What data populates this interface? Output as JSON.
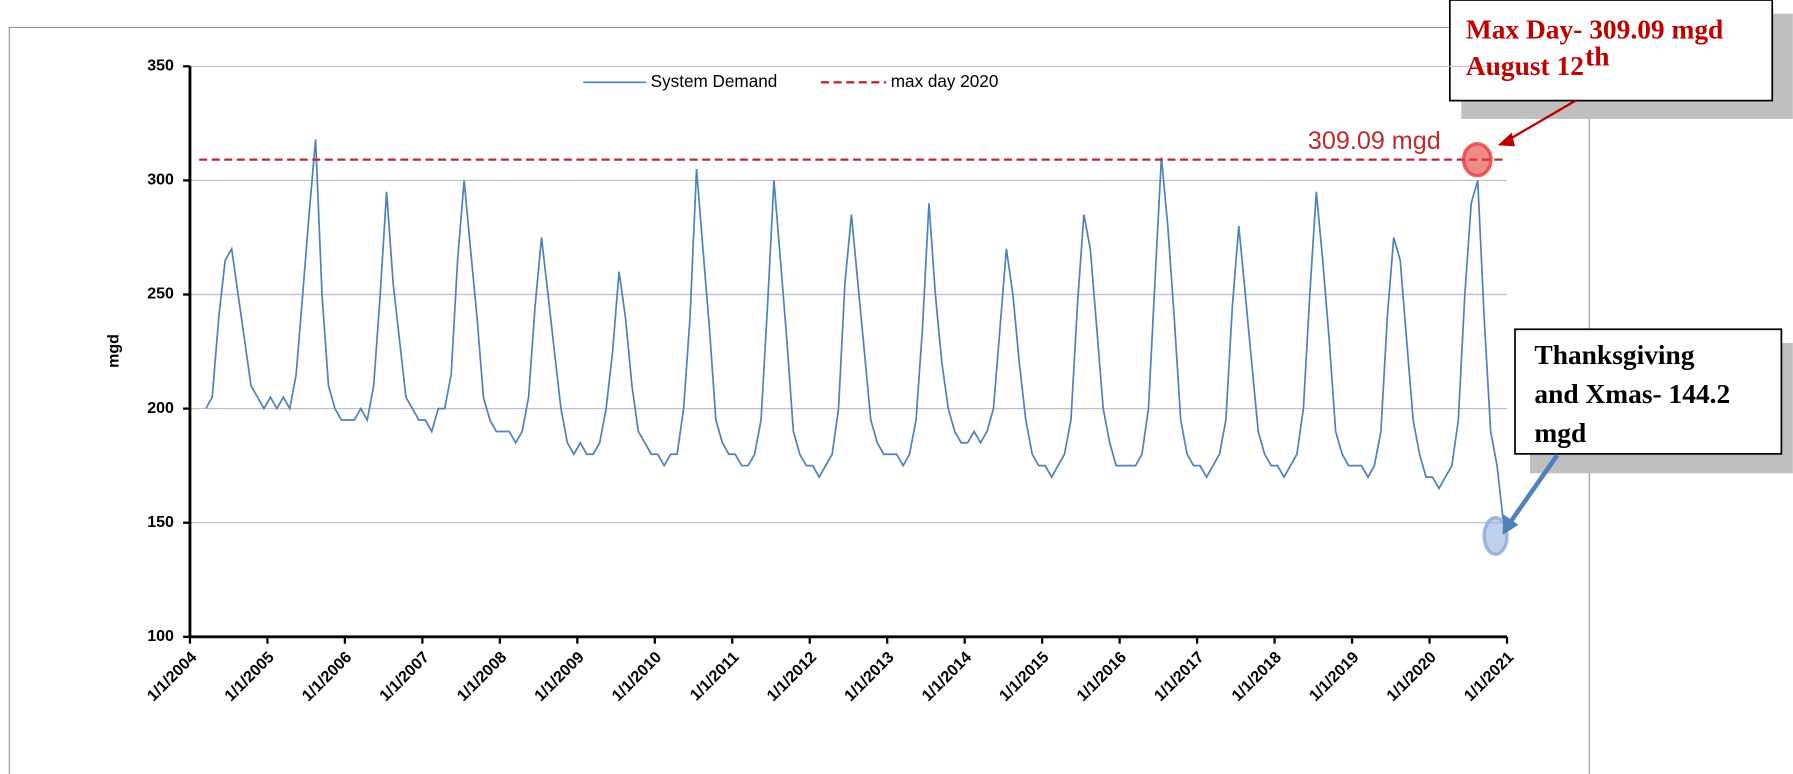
{
  "chart_data": {
    "type": "line",
    "y_label": "mgd",
    "ylim": [
      100,
      350
    ],
    "yticks": [
      100,
      150,
      200,
      250,
      300,
      350
    ],
    "grid": true,
    "xlim": [
      "1/1/2004",
      "1/1/2021"
    ],
    "xticks": [
      "1/1/2004",
      "1/1/2005",
      "1/1/2006",
      "1/1/2007",
      "1/1/2008",
      "1/1/2009",
      "1/1/2010",
      "1/1/2011",
      "1/1/2012",
      "1/1/2013",
      "1/1/2014",
      "1/1/2015",
      "1/1/2016",
      "1/1/2017",
      "1/1/2018",
      "1/1/2019",
      "1/1/2020",
      "1/1/2021"
    ],
    "x": [
      "3/15/2004",
      "4/15/2004",
      "5/15/2004",
      "6/15/2004",
      "7/15/2004",
      "8/15/2004",
      "9/15/2004",
      "10/15/2004",
      "11/15/2004",
      "12/15/2004",
      "1/15/2005",
      "2/15/2005",
      "3/15/2005",
      "4/15/2005",
      "5/15/2005",
      "6/15/2005",
      "7/15/2005",
      "8/15/2005",
      "9/15/2005",
      "10/15/2005",
      "11/15/2005",
      "12/15/2005",
      "1/15/2006",
      "2/15/2006",
      "3/15/2006",
      "4/15/2006",
      "5/15/2006",
      "6/15/2006",
      "7/15/2006",
      "8/15/2006",
      "9/15/2006",
      "10/15/2006",
      "11/15/2006",
      "12/15/2006",
      "1/15/2007",
      "2/15/2007",
      "3/15/2007",
      "4/15/2007",
      "5/15/2007",
      "6/15/2007",
      "7/15/2007",
      "8/15/2007",
      "9/15/2007",
      "10/15/2007",
      "11/15/2007",
      "12/15/2007",
      "1/15/2008",
      "2/15/2008",
      "3/15/2008",
      "4/15/2008",
      "5/15/2008",
      "6/15/2008",
      "7/15/2008",
      "8/15/2008",
      "9/15/2008",
      "10/15/2008",
      "11/15/2008",
      "12/15/2008",
      "1/15/2009",
      "2/15/2009",
      "3/15/2009",
      "4/15/2009",
      "5/15/2009",
      "6/15/2009",
      "7/15/2009",
      "8/15/2009",
      "9/15/2009",
      "10/15/2009",
      "11/15/2009",
      "12/15/2009",
      "1/15/2010",
      "2/15/2010",
      "3/15/2010",
      "4/15/2010",
      "5/15/2010",
      "6/15/2010",
      "7/15/2010",
      "8/15/2010",
      "9/15/2010",
      "10/15/2010",
      "11/15/2010",
      "12/15/2010",
      "1/15/2011",
      "2/15/2011",
      "3/15/2011",
      "4/15/2011",
      "5/15/2011",
      "6/15/2011",
      "7/15/2011",
      "8/15/2011",
      "9/15/2011",
      "10/15/2011",
      "11/15/2011",
      "12/15/2011",
      "1/15/2012",
      "2/15/2012",
      "3/15/2012",
      "4/15/2012",
      "5/15/2012",
      "6/15/2012",
      "7/15/2012",
      "8/15/2012",
      "9/15/2012",
      "10/15/2012",
      "11/15/2012",
      "12/15/2012",
      "1/15/2013",
      "2/15/2013",
      "3/15/2013",
      "4/15/2013",
      "5/15/2013",
      "6/15/2013",
      "7/15/2013",
      "8/15/2013",
      "9/15/2013",
      "10/15/2013",
      "11/15/2013",
      "12/15/2013",
      "1/15/2014",
      "2/15/2014",
      "3/15/2014",
      "4/15/2014",
      "5/15/2014",
      "6/15/2014",
      "7/15/2014",
      "8/15/2014",
      "9/15/2014",
      "10/15/2014",
      "11/15/2014",
      "12/15/2014",
      "1/15/2015",
      "2/15/2015",
      "3/15/2015",
      "4/15/2015",
      "5/15/2015",
      "6/15/2015",
      "7/15/2015",
      "8/15/2015",
      "9/15/2015",
      "10/15/2015",
      "11/15/2015",
      "12/15/2015",
      "1/15/2016",
      "2/15/2016",
      "3/15/2016",
      "4/15/2016",
      "5/15/2016",
      "6/15/2016",
      "7/15/2016",
      "8/15/2016",
      "9/15/2016",
      "10/15/2016",
      "11/15/2016",
      "12/15/2016",
      "1/15/2017",
      "2/15/2017",
      "3/15/2017",
      "4/15/2017",
      "5/15/2017",
      "6/15/2017",
      "7/15/2017",
      "8/15/2017",
      "9/15/2017",
      "10/15/2017",
      "11/15/2017",
      "12/15/2017",
      "1/15/2018",
      "2/15/2018",
      "3/15/2018",
      "4/15/2018",
      "5/15/2018",
      "6/15/2018",
      "7/15/2018",
      "8/15/2018",
      "9/15/2018",
      "10/15/2018",
      "11/15/2018",
      "12/15/2018",
      "1/15/2019",
      "2/15/2019",
      "3/15/2019",
      "4/15/2019",
      "5/15/2019",
      "6/15/2019",
      "7/15/2019",
      "8/15/2019",
      "9/15/2019",
      "10/15/2019",
      "11/15/2019",
      "12/15/2019",
      "1/15/2020",
      "2/15/2020",
      "3/15/2020",
      "4/15/2020",
      "5/15/2020",
      "6/15/2020",
      "7/15/2020",
      "8/15/2020",
      "9/15/2020",
      "10/15/2020",
      "11/15/2020",
      "12/15/2020"
    ],
    "series": [
      {
        "name": "System Demand",
        "color": "#4f81bd",
        "values": [
          200,
          205,
          240,
          265,
          270,
          250,
          230,
          210,
          205,
          200,
          205,
          200,
          205,
          200,
          215,
          250,
          285,
          318,
          250,
          210,
          200,
          195,
          195,
          195,
          200,
          195,
          210,
          250,
          295,
          255,
          230,
          205,
          200,
          195,
          195,
          190,
          200,
          200,
          215,
          265,
          300,
          270,
          240,
          205,
          195,
          190,
          190,
          190,
          185,
          190,
          205,
          245,
          275,
          250,
          225,
          200,
          185,
          180,
          185,
          180,
          180,
          185,
          200,
          225,
          260,
          240,
          210,
          190,
          185,
          180,
          180,
          175,
          180,
          180,
          200,
          240,
          305,
          270,
          235,
          195,
          185,
          180,
          180,
          175,
          175,
          180,
          195,
          245,
          300,
          265,
          230,
          190,
          180,
          175,
          175,
          170,
          175,
          180,
          200,
          255,
          285,
          255,
          225,
          195,
          185,
          180,
          180,
          180,
          175,
          180,
          195,
          235,
          290,
          250,
          220,
          200,
          190,
          185,
          185,
          190,
          185,
          190,
          200,
          235,
          270,
          250,
          220,
          195,
          180,
          175,
          175,
          170,
          175,
          180,
          195,
          245,
          285,
          270,
          235,
          200,
          185,
          175,
          175,
          175,
          175,
          180,
          200,
          255,
          310,
          280,
          240,
          195,
          180,
          175,
          175,
          170,
          175,
          180,
          195,
          245,
          280,
          250,
          220,
          190,
          180,
          175,
          175,
          170,
          175,
          180,
          200,
          250,
          295,
          265,
          230,
          190,
          180,
          175,
          175,
          175,
          170,
          175,
          190,
          240,
          275,
          265,
          230,
          195,
          180,
          170,
          170,
          165,
          170,
          175,
          195,
          250,
          290,
          300,
          240,
          190,
          175,
          150
        ]
      }
    ],
    "reference_line": {
      "name": "max day 2020",
      "value": 309.09,
      "color": "#c0282d",
      "label": "309.09 mgd"
    },
    "annotations": [
      {
        "lines": [
          "Max Day- 309.09 mgd",
          "August 12"
        ],
        "superscript": "th",
        "value": 309.09,
        "color": "#c00000"
      },
      {
        "lines": [
          "Thanksgiving",
          "and Xmas- 144.2",
          "mgd"
        ],
        "value": 144.2,
        "color": "#000000"
      }
    ]
  }
}
